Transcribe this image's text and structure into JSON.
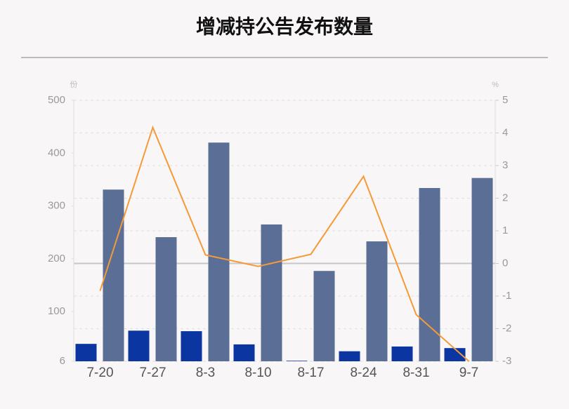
{
  "chart_data": {
    "type": "bar_line",
    "title": "增减持公告发布数量",
    "y_unit": "份",
    "y2_unit": "%",
    "categories": [
      "7-20",
      "7-27",
      "8-3",
      "8-10",
      "8-17",
      "8-24",
      "8-31",
      "9-7"
    ],
    "series": [
      {
        "type": "bar",
        "color": "#0b35a0",
        "values": [
          39,
          64,
          63,
          38,
          7,
          25,
          34,
          31
        ]
      },
      {
        "type": "bar",
        "color": "#5a6e96",
        "values": [
          331,
          241,
          420,
          265,
          177,
          233,
          334,
          353
        ]
      },
      {
        "type": "line",
        "axis": "y2",
        "color": "#f49a38",
        "values": [
          -0.84,
          4.17,
          0.26,
          -0.09,
          0.28,
          2.67,
          -1.57,
          -3.0
        ]
      }
    ],
    "ylim": [
      6,
      500
    ],
    "yticks": [
      6,
      100,
      200,
      300,
      400,
      500
    ],
    "y2lim": [
      -3,
      5
    ],
    "y2ticks": [
      -3,
      -2,
      -1,
      0,
      1,
      2,
      3,
      4,
      5
    ],
    "grid": true
  }
}
